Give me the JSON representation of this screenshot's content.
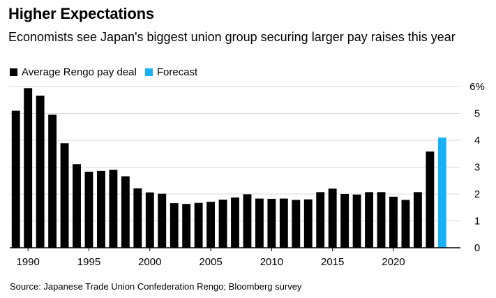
{
  "header": {
    "title": "Higher Expectations",
    "subtitle": "Economists see Japan's biggest union group securing larger pay raises this year"
  },
  "legend": {
    "items": [
      {
        "label": "Average Rengo pay deal",
        "color": "#000000"
      },
      {
        "label": "Forecast",
        "color": "#1ab0f5"
      }
    ]
  },
  "footer": {
    "source": "Source: Japanese Trade Union Confederation Rengo; Bloomberg survey"
  },
  "chart_data": {
    "type": "bar",
    "x": [
      1989,
      1990,
      1991,
      1992,
      1993,
      1994,
      1995,
      1996,
      1997,
      1998,
      1999,
      2000,
      2001,
      2002,
      2003,
      2004,
      2005,
      2006,
      2007,
      2008,
      2009,
      2010,
      2011,
      2012,
      2013,
      2014,
      2015,
      2016,
      2017,
      2018,
      2019,
      2020,
      2021,
      2022,
      2023,
      2024
    ],
    "series": [
      {
        "name": "Average Rengo pay deal",
        "color": "#000000",
        "values": [
          5.1,
          5.94,
          5.66,
          4.95,
          3.89,
          3.11,
          2.83,
          2.86,
          2.9,
          2.66,
          2.21,
          2.06,
          2.01,
          1.66,
          1.63,
          1.67,
          1.71,
          1.79,
          1.87,
          1.99,
          1.83,
          1.82,
          1.83,
          1.78,
          1.8,
          2.07,
          2.2,
          2.0,
          1.98,
          2.07,
          2.07,
          1.9,
          1.78,
          2.07,
          3.58,
          null
        ]
      },
      {
        "name": "Forecast",
        "color": "#1ab0f5",
        "values": [
          null,
          null,
          null,
          null,
          null,
          null,
          null,
          null,
          null,
          null,
          null,
          null,
          null,
          null,
          null,
          null,
          null,
          null,
          null,
          null,
          null,
          null,
          null,
          null,
          null,
          null,
          null,
          null,
          null,
          null,
          null,
          null,
          null,
          null,
          null,
          4.1
        ]
      }
    ],
    "x_ticks": [
      1990,
      1995,
      2000,
      2005,
      2010,
      2015,
      2020
    ],
    "y_ticks": [
      0,
      1,
      2,
      3,
      4,
      5,
      6
    ],
    "y_tick_labels": [
      "0",
      "1",
      "2",
      "3",
      "4",
      "5",
      "6%"
    ],
    "ylim": [
      0,
      6
    ],
    "xlim": [
      1988.5,
      2025.5
    ],
    "grid": true,
    "legend_position": "top-left"
  }
}
